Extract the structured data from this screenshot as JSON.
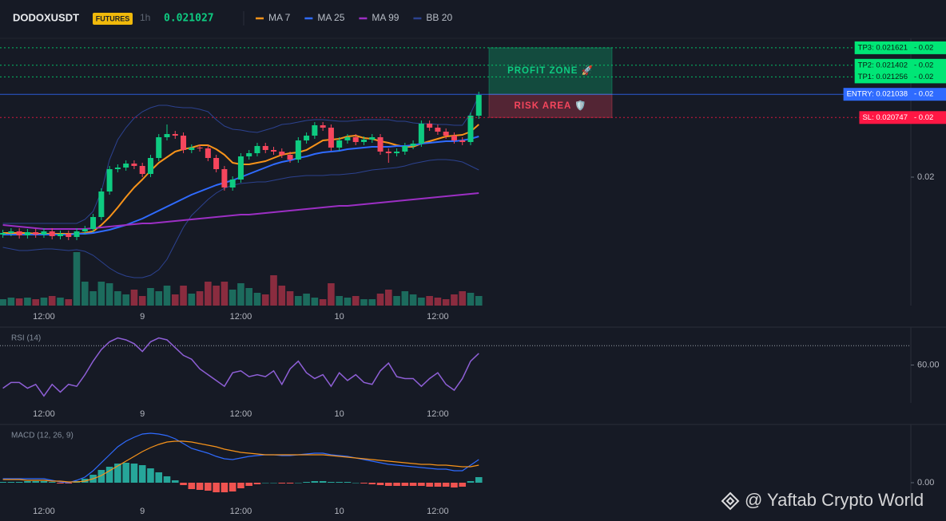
{
  "header": {
    "symbol": "DODOXUSDT",
    "badge": "FUTURES",
    "interval": "1h",
    "price": "0.021027"
  },
  "watermark": "@ Yaftab Crypto World",
  "chart_data": [
    {
      "type": "candlestick",
      "categories": [
        null,
        null,
        null,
        null,
        null,
        "12:00",
        null,
        null,
        null,
        null,
        null,
        null,
        null,
        null,
        null,
        null,
        null,
        "9",
        null,
        null,
        null,
        null,
        null,
        null,
        null,
        null,
        null,
        null,
        null,
        "12:00",
        null,
        null,
        null,
        null,
        null,
        null,
        null,
        null,
        null,
        null,
        null,
        "10",
        null,
        null,
        null,
        null,
        null,
        null,
        null,
        null,
        null,
        null,
        null,
        "12:00",
        null,
        null,
        null,
        null,
        null
      ],
      "open": [
        0.01928,
        0.0193,
        0.01932,
        0.01927,
        0.01931,
        0.01928,
        0.01932,
        0.01926,
        0.01929,
        0.01925,
        0.01932,
        0.01935,
        0.0195,
        0.01982,
        0.0201,
        0.02012,
        0.02017,
        0.02014,
        0.02004,
        0.02024,
        0.0205,
        0.02054,
        0.02052,
        0.02034,
        0.02037,
        0.02036,
        0.02024,
        0.0201,
        0.01987,
        0.01997,
        0.02026,
        0.0203,
        0.02039,
        0.02034,
        0.02032,
        0.02028,
        0.02022,
        0.02046,
        0.02052,
        0.02065,
        0.02062,
        0.02037,
        0.02046,
        0.0205,
        0.02044,
        0.02047,
        0.0205,
        0.02032,
        0.0203,
        0.02032,
        0.02039,
        0.02042,
        0.02067,
        0.02062,
        0.02057,
        0.02052,
        0.02046,
        0.02044,
        0.02077
      ],
      "high": [
        0.01934,
        0.01936,
        0.01936,
        0.01935,
        0.01935,
        0.01936,
        0.01936,
        0.01933,
        0.01933,
        0.01936,
        0.01939,
        0.01954,
        0.01986,
        0.02014,
        0.02016,
        0.02021,
        0.02021,
        0.02018,
        0.02028,
        0.02054,
        0.02066,
        0.02058,
        0.02056,
        0.02041,
        0.02041,
        0.0204,
        0.02028,
        0.02014,
        0.02001,
        0.0203,
        0.02034,
        0.02043,
        0.02043,
        0.02038,
        0.02036,
        0.02032,
        0.0205,
        0.02056,
        0.02069,
        0.02069,
        0.02066,
        0.0205,
        0.02054,
        0.02054,
        0.02051,
        0.02054,
        0.02054,
        0.02036,
        0.02036,
        0.02043,
        0.02046,
        0.02071,
        0.02071,
        0.02066,
        0.02061,
        0.02056,
        0.0205,
        0.02081,
        0.02107
      ],
      "low": [
        0.01924,
        0.01926,
        0.01923,
        0.01923,
        0.01924,
        0.01924,
        0.01922,
        0.01922,
        0.01921,
        0.01921,
        0.01928,
        0.01931,
        0.01946,
        0.01978,
        0.02006,
        0.02008,
        0.0201,
        0.02,
        0.02,
        0.0202,
        0.02046,
        0.02048,
        0.0203,
        0.0203,
        0.02032,
        0.0202,
        0.02006,
        0.01983,
        0.01983,
        0.01993,
        0.02022,
        0.02026,
        0.0203,
        0.02028,
        0.02024,
        0.02018,
        0.02018,
        0.02042,
        0.02048,
        0.02058,
        0.02033,
        0.02033,
        0.02042,
        0.0204,
        0.0204,
        0.02043,
        0.02028,
        0.02018,
        0.02026,
        0.02028,
        0.02035,
        0.02038,
        0.02058,
        0.02053,
        0.02048,
        0.02042,
        0.0204,
        0.0204,
        0.02073
      ],
      "close": [
        0.0193,
        0.01932,
        0.01927,
        0.01931,
        0.01928,
        0.01932,
        0.01926,
        0.01929,
        0.01925,
        0.01932,
        0.01935,
        0.0195,
        0.01982,
        0.0201,
        0.02012,
        0.02017,
        0.02014,
        0.02004,
        0.02024,
        0.0205,
        0.02054,
        0.02052,
        0.02034,
        0.02037,
        0.02036,
        0.02024,
        0.0201,
        0.01987,
        0.01997,
        0.02026,
        0.0203,
        0.02039,
        0.02034,
        0.02032,
        0.02028,
        0.02022,
        0.02046,
        0.02052,
        0.02065,
        0.02062,
        0.02037,
        0.02046,
        0.0205,
        0.02044,
        0.02047,
        0.0205,
        0.02032,
        0.0203,
        0.02032,
        0.02039,
        0.02042,
        0.02067,
        0.02062,
        0.02057,
        0.02052,
        0.02046,
        0.02044,
        0.02077,
        0.02103
      ],
      "volume": [
        8,
        10,
        9,
        10,
        8,
        10,
        12,
        10,
        8,
        67,
        30,
        18,
        30,
        28,
        18,
        14,
        20,
        12,
        22,
        18,
        25,
        14,
        25,
        15,
        18,
        30,
        25,
        30,
        20,
        28,
        22,
        16,
        14,
        38,
        25,
        18,
        12,
        15,
        10,
        8,
        28,
        12,
        10,
        12,
        8,
        8,
        15,
        20,
        12,
        18,
        14,
        10,
        12,
        10,
        8,
        14,
        18,
        16,
        12
      ],
      "up_color": "#0ecb81",
      "down_color": "#f6465d",
      "volume_up_color": "#1c6b5d",
      "volume_down_color": "#8a2c3f",
      "ylim": [
        0.01839,
        0.02174
      ],
      "yticks": [
        0.02
      ],
      "series": [
        {
          "name": "MA 7",
          "color": "#f7931a",
          "values": [
            0.0193,
            0.0193,
            0.0193,
            0.0193,
            0.01929,
            0.01929,
            0.01929,
            0.01929,
            0.01929,
            0.01929,
            0.0193,
            0.01932,
            0.0194,
            0.0195,
            0.01962,
            0.01975,
            0.01987,
            0.01997,
            0.02008,
            0.02018,
            0.02025,
            0.02032,
            0.02035,
            0.02037,
            0.0204,
            0.0204,
            0.02035,
            0.02028,
            0.02018,
            0.02016,
            0.02016,
            0.02018,
            0.0202,
            0.02024,
            0.02028,
            0.0203,
            0.02031,
            0.02034,
            0.0204,
            0.02046,
            0.02047,
            0.02048,
            0.02051,
            0.02052,
            0.02049,
            0.02048,
            0.02045,
            0.02043,
            0.0204,
            0.02038,
            0.02038,
            0.02042,
            0.02045,
            0.02048,
            0.02051,
            0.02052,
            0.02053,
            0.02057,
            0.02066
          ]
        },
        {
          "name": "MA 25",
          "color": "#2f6bff",
          "values": [
            0.01928,
            0.01928,
            0.01928,
            0.01928,
            0.01928,
            0.01928,
            0.01928,
            0.01928,
            0.01928,
            0.01929,
            0.01929,
            0.0193,
            0.01932,
            0.01934,
            0.01937,
            0.0194,
            0.01944,
            0.01948,
            0.01953,
            0.01958,
            0.01963,
            0.01968,
            0.01973,
            0.01978,
            0.01982,
            0.01986,
            0.0199,
            0.01993,
            0.01996,
            0.02,
            0.02004,
            0.02008,
            0.02012,
            0.02016,
            0.02019,
            0.02021,
            0.02024,
            0.02026,
            0.02029,
            0.02031,
            0.02032,
            0.02033,
            0.02035,
            0.02036,
            0.02037,
            0.02038,
            0.02038,
            0.02038,
            0.02039,
            0.02039,
            0.0204,
            0.02042,
            0.02043,
            0.02044,
            0.02045,
            0.02045,
            0.02046,
            0.02048,
            0.02051
          ]
        },
        {
          "name": "MA 99",
          "color": "#9c2fc4",
          "values": [
            0.0194,
            0.01939,
            0.01938,
            0.01937,
            0.01936,
            0.01935,
            0.01935,
            0.01935,
            0.01935,
            0.01935,
            0.01935,
            0.01936,
            0.01937,
            0.01938,
            0.01939,
            0.0194,
            0.01941,
            0.01942,
            0.01942,
            0.01943,
            0.01944,
            0.01945,
            0.01946,
            0.01947,
            0.01948,
            0.01949,
            0.0195,
            0.01951,
            0.01952,
            0.01953,
            0.01953,
            0.01954,
            0.01955,
            0.01956,
            0.01957,
            0.01958,
            0.01959,
            0.0196,
            0.01961,
            0.01962,
            0.01963,
            0.01964,
            0.01964,
            0.01965,
            0.01966,
            0.01967,
            0.01968,
            0.01969,
            0.0197,
            0.01971,
            0.01972,
            0.01973,
            0.01974,
            0.01975,
            0.01976,
            0.01977,
            0.01978,
            0.01979,
            0.0198
          ]
        },
        {
          "name": "BB 20",
          "color": "#2c4290",
          "upper": [
            0.01942,
            0.01942,
            0.01942,
            0.01942,
            0.01942,
            0.01942,
            0.01942,
            0.01942,
            0.01942,
            0.01942,
            0.01947,
            0.01957,
            0.01982,
            0.02022,
            0.02047,
            0.02062,
            0.02074,
            0.02082,
            0.02087,
            0.0209,
            0.0209,
            0.02088,
            0.02087,
            0.02087,
            0.02085,
            0.02082,
            0.02072,
            0.02064,
            0.0206,
            0.02059,
            0.02057,
            0.02056,
            0.02059,
            0.02062,
            0.02066,
            0.02067,
            0.02069,
            0.02071,
            0.02072,
            0.02072,
            0.02071,
            0.0207,
            0.0207,
            0.02071,
            0.02072,
            0.02072,
            0.02072,
            0.02072,
            0.0207,
            0.0207,
            0.02068,
            0.02067,
            0.02067,
            0.02066,
            0.02066,
            0.02065,
            0.02065,
            0.0208,
            0.02102
          ],
          "lower": [
            0.01912,
            0.0191,
            0.01908,
            0.01908,
            0.01909,
            0.0191,
            0.0191,
            0.01909,
            0.01908,
            0.01909,
            0.01907,
            0.01902,
            0.01894,
            0.01886,
            0.0188,
            0.01876,
            0.01874,
            0.01874,
            0.01877,
            0.01884,
            0.01897,
            0.01917,
            0.01937,
            0.01952,
            0.01962,
            0.01972,
            0.0198,
            0.01986,
            0.0199,
            0.01992,
            0.01993,
            0.01994,
            0.01994,
            0.01996,
            0.01998,
            0.02,
            0.02001,
            0.02002,
            0.02002,
            0.02002,
            0.02003,
            0.02003,
            0.02004,
            0.02005,
            0.02007,
            0.02009,
            0.0201,
            0.02011,
            0.02012,
            0.02014,
            0.02017,
            0.02019,
            0.02021,
            0.02022,
            0.02022,
            0.02021,
            0.02019,
            0.02014,
            0.02009
          ]
        }
      ],
      "levels": {
        "tp3": {
          "label": "TP3: 0.021621",
          "value": 0.021621,
          "axis_label": "- 0.02",
          "color": "#00e676",
          "text_color": "#0b1a12",
          "dash": true
        },
        "tp2": {
          "label": "TP2: 0.021402",
          "value": 0.021402,
          "axis_label": "- 0.02",
          "color": "#00e676",
          "text_color": "#0b1a12",
          "dash": true
        },
        "tp1": {
          "label": "TP1: 0.021256",
          "value": 0.021256,
          "axis_label": "- 0.02",
          "color": "#00e676",
          "text_color": "#0b1a12",
          "dash": true
        },
        "entry": {
          "label": "ENTRY: 0.021038",
          "value": 0.021038,
          "axis_label": "- 0.02",
          "color": "#2f6bff",
          "text_color": "#ffffff",
          "dash": false
        },
        "sl": {
          "label": "SL: 0.020747",
          "value": 0.020747,
          "axis_label": "- 0.02",
          "color": "#ff1744",
          "text_color": "#ffffff",
          "dash": true
        }
      },
      "zones": {
        "profit": {
          "label": "PROFIT ZONE 🚀",
          "color": "#0ecb81"
        },
        "risk": {
          "label": "RISK AREA 🛡️",
          "color": "#f6465d"
        }
      }
    },
    {
      "type": "line",
      "title": "RSI (14)",
      "color": "#8e5fd6",
      "values": [
        48,
        51,
        51,
        48,
        50,
        44,
        50,
        46,
        50,
        49,
        55,
        62,
        68,
        72,
        74,
        73,
        71,
        67,
        72,
        74,
        73,
        69,
        65,
        63,
        58,
        55,
        52,
        49,
        56,
        57,
        54,
        55,
        54,
        57,
        50,
        58,
        62,
        56,
        53,
        55,
        49,
        56,
        52,
        55,
        51,
        50,
        57,
        61,
        54,
        53,
        53,
        49,
        53,
        56,
        50,
        47,
        53,
        62,
        66
      ],
      "ylim": [
        40.42,
        79.58
      ],
      "yticks": [
        {
          "value": 60,
          "label": "60.00"
        }
      ],
      "levels": [
        70
      ]
    },
    {
      "type": "macd",
      "title": "MACD (12, 26, 9)",
      "macd": {
        "color": "#2f6bff",
        "values": [
          5e-05,
          5e-05,
          5e-05,
          5e-05,
          5e-05,
          5e-05,
          3e-05,
          1e-05,
          0,
          3e-05,
          7e-05,
          0.00015,
          0.00025,
          0.00035,
          0.00045,
          0.00052,
          0.00057,
          0.00061,
          0.00062,
          0.00061,
          0.00059,
          0.00055,
          0.00049,
          0.00043,
          0.0004,
          0.00037,
          0.00033,
          0.0003,
          0.00029,
          0.00031,
          0.00033,
          0.00034,
          0.00035,
          0.00035,
          0.00034,
          0.00034,
          0.00035,
          0.00036,
          0.00037,
          0.00037,
          0.00035,
          0.00034,
          0.00033,
          0.00031,
          0.00029,
          0.00027,
          0.00025,
          0.00023,
          0.00022,
          0.00021,
          0.0002,
          0.00019,
          0.00018,
          0.00017,
          0.00017,
          0.00015,
          0.00015,
          0.00022,
          0.00029
        ]
      },
      "signal": {
        "color": "#f7931a",
        "values": [
          4e-05,
          4e-05,
          4e-05,
          3e-05,
          3e-05,
          3e-05,
          2e-05,
          2e-05,
          1e-05,
          1e-05,
          2e-05,
          5e-05,
          9e-05,
          0.00015,
          0.00021,
          0.00027,
          0.00033,
          0.00039,
          0.00044,
          0.00048,
          0.00051,
          0.00052,
          0.00052,
          0.00051,
          0.00049,
          0.00047,
          0.00045,
          0.00042,
          0.0004,
          0.00038,
          0.00037,
          0.00036,
          0.00035,
          0.00035,
          0.00035,
          0.00035,
          0.00035,
          0.00035,
          0.00035,
          0.00035,
          0.00034,
          0.00033,
          0.00032,
          0.00031,
          0.0003,
          0.00029,
          0.00028,
          0.00027,
          0.00026,
          0.00025,
          0.00024,
          0.00023,
          0.00023,
          0.00022,
          0.00022,
          0.00021,
          0.0002,
          0.0002,
          0.00022
        ]
      },
      "histogram": {
        "up_color": "#26a69a",
        "down_color": "#ef5350",
        "values": [
          1e-05,
          1e-05,
          1e-05,
          2e-05,
          2e-05,
          2e-05,
          1e-05,
          -1e-05,
          -1e-05,
          2e-05,
          5e-05,
          0.0001,
          0.00016,
          0.0002,
          0.00024,
          0.00025,
          0.00024,
          0.00022,
          0.00018,
          0.00013,
          8e-05,
          3e-05,
          -3e-05,
          -8e-05,
          -9e-05,
          -0.0001,
          -0.00012,
          -0.00012,
          -0.00011,
          -7e-05,
          -4e-05,
          -2e-05,
          0,
          0,
          -1e-05,
          -1e-05,
          0,
          1e-05,
          2e-05,
          2e-05,
          1e-05,
          1e-05,
          1e-05,
          0,
          -1e-05,
          -2e-05,
          -3e-05,
          -4e-05,
          -4e-05,
          -4e-05,
          -4e-05,
          -4e-05,
          -5e-05,
          -5e-05,
          -5e-05,
          -6e-05,
          -5e-05,
          2e-05,
          7e-05
        ]
      },
      "ylim": [
        -0.00023,
        0.00073
      ],
      "yticks": [
        {
          "value": 0,
          "label": "0.00"
        }
      ]
    }
  ]
}
